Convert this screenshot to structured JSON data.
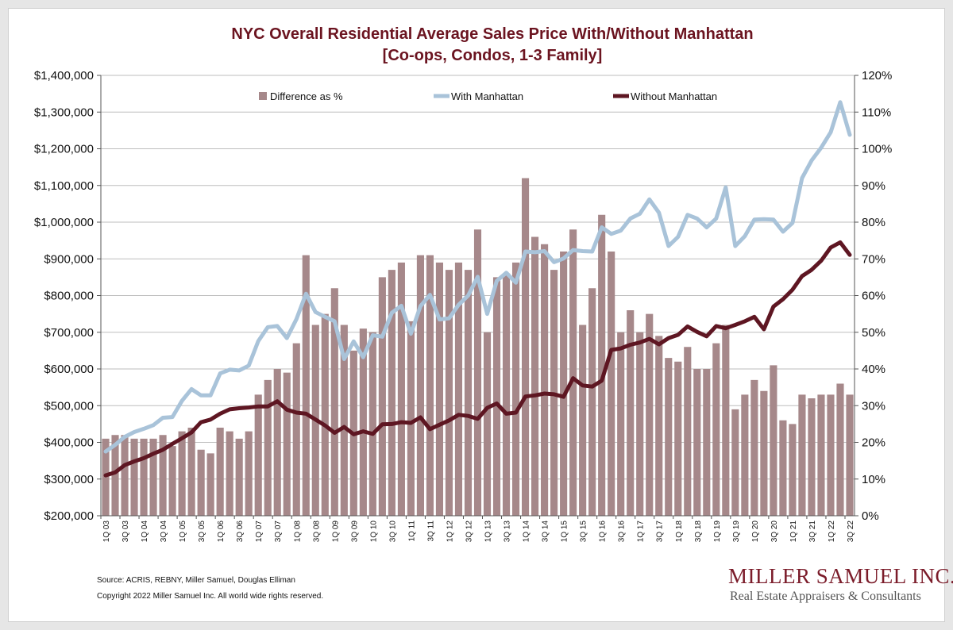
{
  "page": {
    "title_line1": "NYC Overall Residential Average Sales Price With/Without Manhattan",
    "title_line2": "[Co-ops, Condos, 1-3 Family]",
    "source": "Source: ACRIS, REBNY, Miller Samuel, Douglas Elliman",
    "copyright": "Copyright 2022 Miller Samuel Inc.  All world wide rights reserved.",
    "logo_name": "MILLER SAMUEL INC.",
    "logo_tagline": "Real Estate Appraisers & Consultants"
  },
  "colors": {
    "bars": "#a6888a",
    "with_manhattan": "#a9c3d9",
    "without_manhattan": "#5e1622",
    "title": "#6b1420"
  },
  "chart_data": {
    "type": "bar",
    "combo": "bars on right axis, lines on left axis",
    "left_axis": {
      "ylim": [
        200000,
        1400000
      ],
      "ticks": [
        200000,
        300000,
        400000,
        500000,
        600000,
        700000,
        800000,
        900000,
        1000000,
        1100000,
        1200000,
        1300000,
        1400000
      ],
      "tick_labels": [
        "$200,000",
        "$300,000",
        "$400,000",
        "$500,000",
        "$600,000",
        "$700,000",
        "$800,000",
        "$900,000",
        "$1,000,000",
        "$1,100,000",
        "$1,200,000",
        "$1,300,000",
        "$1,400,000"
      ]
    },
    "right_axis": {
      "ylim": [
        0,
        120
      ],
      "ticks": [
        0,
        10,
        20,
        30,
        40,
        50,
        60,
        70,
        80,
        90,
        100,
        110,
        120
      ],
      "tick_labels": [
        "0%",
        "10%",
        "20%",
        "30%",
        "40%",
        "50%",
        "60%",
        "70%",
        "80%",
        "90%",
        "100%",
        "110%",
        "120%"
      ]
    },
    "grid": "horizontal",
    "legend": "top",
    "x_labels_step": 2,
    "categories": [
      "1Q 03",
      "2Q 03",
      "3Q 03",
      "4Q 03",
      "1Q 04",
      "2Q 04",
      "3Q 04",
      "4Q 04",
      "1Q 05",
      "2Q 05",
      "3Q 05",
      "4Q 05",
      "1Q 06",
      "2Q 06",
      "3Q 06",
      "4Q 06",
      "1Q 07",
      "2Q 07",
      "3Q 07",
      "4Q 07",
      "1Q 08",
      "2Q 08",
      "3Q 08",
      "4Q 08",
      "1Q 09",
      "2Q 09",
      "3Q 09",
      "4Q 09",
      "1Q 10",
      "2Q 10",
      "3Q 10",
      "4Q 10",
      "1Q 11",
      "2Q 11",
      "3Q 11",
      "4Q 11",
      "1Q 12",
      "2Q 12",
      "3Q 12",
      "4Q 12",
      "1Q 13",
      "2Q 13",
      "3Q 13",
      "4Q 13",
      "1Q 14",
      "2Q 14",
      "3Q 14",
      "4Q 14",
      "1Q 15",
      "2Q 15",
      "3Q 15",
      "4Q 15",
      "1Q 16",
      "2Q 16",
      "3Q 16",
      "4Q 16",
      "1Q 17",
      "2Q 17",
      "3Q 17",
      "4Q 17",
      "1Q 18",
      "2Q 18",
      "3Q 18",
      "4Q 18",
      "1Q 19",
      "2Q 19",
      "3Q 19",
      "4Q 19",
      "1Q 20",
      "2Q 20",
      "3Q 20",
      "4Q 20",
      "1Q 21",
      "2Q 21",
      "3Q 21",
      "4Q 21",
      "1Q 22",
      "2Q 22",
      "3Q 22"
    ],
    "series": [
      {
        "name": "Difference as %",
        "kind": "bar",
        "axis": "right",
        "values": [
          21,
          22,
          22,
          21,
          21,
          21,
          22,
          19,
          23,
          24,
          18,
          17,
          24,
          23,
          21,
          23,
          33,
          37,
          40,
          39,
          47,
          71,
          52,
          55,
          62,
          52,
          45,
          51,
          50,
          65,
          67,
          69,
          53,
          71,
          71,
          69,
          67,
          69,
          67,
          78,
          50,
          65,
          66,
          69,
          92,
          76,
          74,
          67,
          72,
          78,
          52,
          62,
          82,
          72,
          50,
          56,
          50,
          55,
          49,
          43,
          42,
          46,
          40,
          40,
          47,
          52,
          29,
          33,
          37,
          34,
          41,
          26,
          25,
          33,
          32,
          33,
          33,
          36,
          33
        ]
      },
      {
        "name": "With Manhattan",
        "kind": "line",
        "axis": "left",
        "values": [
          375000,
          393000,
          415000,
          428000,
          437000,
          447000,
          467000,
          469000,
          513000,
          545000,
          528000,
          528000,
          588000,
          598000,
          596000,
          609000,
          676000,
          714000,
          717000,
          684000,
          736000,
          805000,
          755000,
          742000,
          730000,
          627000,
          675000,
          632000,
          692000,
          688000,
          753000,
          772000,
          696000,
          771000,
          802000,
          735000,
          738000,
          775000,
          800000,
          851000,
          750000,
          840000,
          862000,
          835000,
          920000,
          918000,
          921000,
          891000,
          901000,
          924000,
          921000,
          920000,
          986000,
          968000,
          977000,
          1010000,
          1023000,
          1062000,
          1026000,
          935000,
          960000,
          1020000,
          1010000,
          986000,
          1010000,
          1095000,
          935000,
          962000,
          1007000,
          1008000,
          1007000,
          974000,
          998000,
          1120000,
          1168000,
          1203000,
          1245000,
          1327000,
          1238000
        ]
      },
      {
        "name": "Without Manhattan",
        "kind": "line",
        "axis": "left",
        "values": [
          310000,
          318000,
          338000,
          348000,
          357000,
          369000,
          380000,
          396000,
          411000,
          427000,
          455000,
          462000,
          478000,
          490000,
          493000,
          495000,
          498000,
          498000,
          512000,
          489000,
          481000,
          478000,
          462000,
          446000,
          426000,
          442000,
          422000,
          430000,
          423000,
          449000,
          450000,
          455000,
          453000,
          468000,
          436000,
          448000,
          460000,
          475000,
          472000,
          464000,
          494000,
          506000,
          478000,
          481000,
          525000,
          528000,
          533000,
          531000,
          524000,
          575000,
          555000,
          552000,
          568000,
          652000,
          656000,
          666000,
          672000,
          682000,
          667000,
          684000,
          693000,
          716000,
          701000,
          689000,
          717000,
          711000,
          720000,
          730000,
          742000,
          708000,
          770000,
          790000,
          816000,
          853000,
          870000,
          895000,
          931000,
          945000,
          911000
        ]
      }
    ]
  }
}
